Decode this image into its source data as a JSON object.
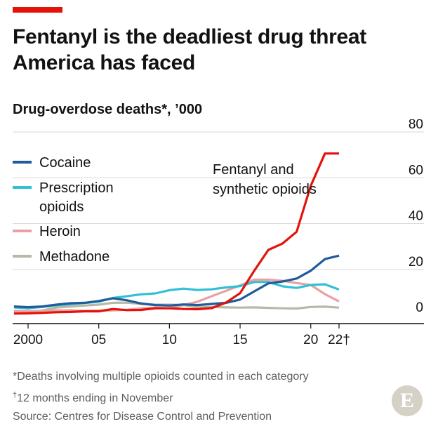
{
  "title": "Fentanyl is the deadliest drug threat America has faced",
  "subtitle": "Drug-overdose deaths*, ’000",
  "brand": {
    "accent_color": "#e3120b",
    "logo_letter": "E"
  },
  "notes": {
    "footnote": "*Deaths involving multiple opioids counted in each category",
    "dagger": "†",
    "footnote2": "12 months ending in November",
    "source": "Source: Centres for Disease Control and Prevention"
  },
  "chart_data": {
    "type": "line",
    "ylim": [
      0,
      80
    ],
    "yticks": [
      0,
      20,
      40,
      60,
      80
    ],
    "xlim": [
      2000,
      2022
    ],
    "xticks": [
      {
        "value": 2000,
        "label": "2000"
      },
      {
        "value": 2005,
        "label": "05"
      },
      {
        "value": 2010,
        "label": "10"
      },
      {
        "value": 2015,
        "label": "15"
      },
      {
        "value": 2020,
        "label": "20"
      },
      {
        "value": 2022,
        "label": "22†"
      }
    ],
    "x": [
      1999,
      2000,
      2001,
      2002,
      2003,
      2004,
      2005,
      2006,
      2007,
      2008,
      2009,
      2010,
      2011,
      2012,
      2013,
      2014,
      2015,
      2016,
      2017,
      2018,
      2019,
      2020,
      2021,
      2022
    ],
    "series": [
      {
        "name": "Fentanyl and synthetic opioids",
        "color": "#e3120b",
        "values": [
          0.7,
          0.8,
          1.0,
          1.3,
          1.4,
          1.7,
          1.7,
          2.7,
          2.2,
          2.3,
          3.0,
          3.0,
          2.7,
          2.6,
          3.1,
          5.5,
          9.6,
          19.4,
          28.5,
          31.3,
          36.4,
          56.5,
          70.6,
          70.6
        ]
      },
      {
        "name": "Cocaine",
        "color": "#1f5c99",
        "values": [
          3.8,
          3.5,
          3.8,
          4.6,
          5.2,
          5.4,
          6.2,
          7.4,
          6.5,
          5.1,
          4.4,
          4.2,
          4.7,
          4.4,
          4.9,
          5.4,
          6.8,
          10.4,
          13.9,
          14.7,
          16.0,
          19.4,
          24.5,
          26.0
        ]
      },
      {
        "name": "Prescription opioids",
        "color": "#33bfd6",
        "values": [
          3.4,
          3.0,
          3.6,
          4.3,
          4.8,
          5.3,
          5.9,
          7.5,
          8.3,
          9.1,
          9.5,
          10.9,
          11.6,
          11.0,
          11.3,
          12.1,
          12.7,
          14.5,
          14.5,
          12.6,
          11.9,
          13.2,
          13.5,
          11.2
        ]
      },
      {
        "name": "Heroin",
        "color": "#e8a2a3",
        "values": [
          1.9,
          1.8,
          1.8,
          2.1,
          2.1,
          1.9,
          2.0,
          2.1,
          2.4,
          3.0,
          3.3,
          3.0,
          4.4,
          5.9,
          8.3,
          10.6,
          13.0,
          15.5,
          15.5,
          15.0,
          14.0,
          13.2,
          9.2,
          6.0
        ]
      },
      {
        "name": "Methadone",
        "color": "#b8b8a8",
        "values": [
          1.3,
          1.4,
          2.0,
          3.3,
          3.8,
          4.2,
          4.6,
          5.4,
          5.5,
          4.9,
          4.6,
          4.6,
          4.4,
          3.4,
          3.6,
          3.4,
          3.3,
          3.4,
          3.2,
          3.0,
          2.9,
          3.6,
          3.7,
          3.3
        ]
      }
    ],
    "legend": [
      "Cocaine",
      "Prescription opioids",
      "Heroin",
      "Methadone"
    ],
    "legend_lines": [
      [
        "Cocaine"
      ],
      [
        "Prescription",
        "opioids"
      ],
      [
        "Heroin"
      ],
      [
        "Methadone"
      ]
    ],
    "annotation": {
      "series": "Fentanyl and synthetic opioids",
      "lines": [
        "Fentanyl and",
        "synthetic opioids"
      ]
    },
    "grid": true,
    "legend_position": "top-left"
  }
}
